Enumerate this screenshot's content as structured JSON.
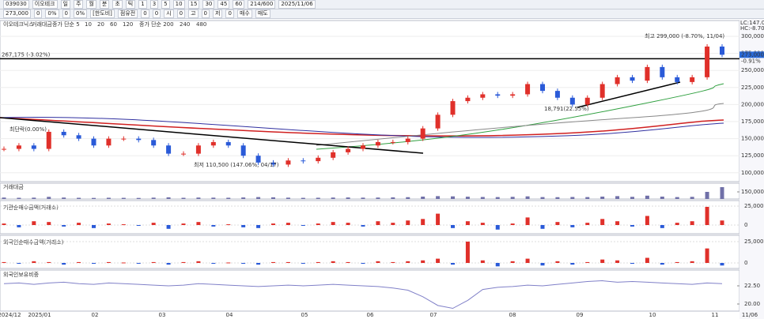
{
  "toolbar": {
    "row1": [
      "039030",
      "이오테크",
      "일",
      "주",
      "월",
      "분",
      "초",
      "틱",
      "1",
      "3",
      "5",
      "10",
      "15",
      "30",
      "45",
      "60",
      "214/600",
      "2025/11/06"
    ],
    "row2": [
      "273,000",
      "0",
      "0%",
      "0",
      "0%",
      "[한도비]",
      "점유전",
      "0",
      "0",
      "시",
      "0",
      "고",
      "0",
      "저",
      "0",
      "매수",
      "매도"
    ]
  },
  "legend": [
    "이오테크닉스",
    "거래대금",
    "종가 단순 5",
    "10",
    "20",
    "60",
    "120",
    "종가 단순 200",
    "240",
    "480"
  ],
  "annotations": {
    "high": "최고 299,000 (-8.70%, 11/04)",
    "ref_label": "267,175 (-3.02%)",
    "low": "최저 110,500 (147.06%, 04/17)",
    "mid": "18,791(22.55%)",
    "left": "최단락(0.00%)"
  },
  "ref_line": 267175,
  "right_info": {
    "lc": "LC:147.06",
    "hc": "HC:-8.70",
    "last": "273,000",
    "change": "-0.91%"
  },
  "price": {
    "yticks": [
      {
        "value": 300000,
        "label": "300,000"
      },
      {
        "value": 275000,
        "label": "275,000"
      },
      {
        "value": 250000,
        "label": "250,000"
      },
      {
        "value": 225000,
        "label": "225,000"
      },
      {
        "value": 200000,
        "label": "200,000"
      },
      {
        "value": 175000,
        "label": "175,000"
      },
      {
        "value": 150000,
        "label": "150,000"
      },
      {
        "value": 125000,
        "label": "125,000"
      },
      {
        "value": 100000,
        "label": "100,000"
      }
    ],
    "closes": [
      135000,
      140000,
      135000,
      160000,
      155000,
      150000,
      140000,
      150000,
      150000,
      148000,
      140000,
      128000,
      128000,
      140000,
      145000,
      140000,
      125000,
      115000,
      112000,
      118000,
      117000,
      122000,
      130000,
      135000,
      140000,
      145000,
      145000,
      150000,
      165000,
      185000,
      205000,
      210000,
      215000,
      213000,
      215000,
      230000,
      220000,
      210000,
      200000,
      210000,
      230000,
      240000,
      235000,
      255000,
      240000,
      233000,
      240000,
      285000,
      273000
    ]
  },
  "volume": {
    "title": "거래대금",
    "ytick": {
      "value": 150000,
      "label": "150,000"
    },
    "values": [
      30000,
      25000,
      28000,
      45000,
      30000,
      25000,
      22000,
      26000,
      24000,
      22000,
      28000,
      35000,
      25000,
      30000,
      28000,
      26000,
      32000,
      40000,
      35000,
      28000,
      24000,
      26000,
      30000,
      32000,
      28000,
      30000,
      34000,
      38000,
      50000,
      60000,
      55000,
      48000,
      42000,
      40000,
      45000,
      55000,
      40000,
      38000,
      42000,
      40000,
      50000,
      60000,
      45000,
      70000,
      50000,
      40000,
      45000,
      150000,
      250000
    ]
  },
  "inst": {
    "title": "기관순매수금액(거래소)",
    "yticks": [
      {
        "value": 25000,
        "label": "25,000"
      },
      0
    ],
    "values": [
      2000,
      -3000,
      5000,
      4000,
      -2000,
      3000,
      -4000,
      2000,
      1000,
      -1000,
      3000,
      -5000,
      2000,
      4000,
      -2000,
      1000,
      -3000,
      -4000,
      2000,
      3000,
      -1000,
      2000,
      4000,
      3000,
      -2000,
      5000,
      3000,
      6000,
      8000,
      15000,
      -4000,
      5000,
      3000,
      -6000,
      2000,
      10000,
      -5000,
      4000,
      -3000,
      3000,
      8000,
      5000,
      -2000,
      12000,
      -4000,
      3000,
      5000,
      24000,
      6000
    ]
  },
  "foreign": {
    "title": "외국인순매수금액(거래소)",
    "yticks": [
      {
        "value": 25000,
        "label": "25,000"
      },
      0
    ],
    "values": [
      1000,
      -1000,
      2000,
      1000,
      -2000,
      1000,
      -1000,
      1000,
      500,
      -500,
      1000,
      -2000,
      1000,
      2000,
      -1000,
      500,
      -1000,
      -2000,
      1000,
      1000,
      -500,
      1000,
      2000,
      1000,
      -1000,
      2000,
      1000,
      2000,
      3000,
      5000,
      -2000,
      25000,
      3000,
      -4000,
      2000,
      5000,
      -3000,
      2000,
      -2000,
      1000,
      4000,
      3000,
      -1000,
      6000,
      -2000,
      1000,
      2000,
      17000,
      -3000
    ]
  },
  "holding": {
    "title": "외국인보유비중",
    "yticks": [
      {
        "value": 22.5,
        "label": "22.50"
      },
      {
        "value": 20,
        "label": "20.00"
      }
    ],
    "values": [
      22.8,
      22.9,
      22.7,
      22.9,
      23.0,
      22.8,
      22.7,
      22.9,
      22.8,
      22.7,
      22.6,
      22.5,
      22.6,
      22.8,
      22.7,
      22.6,
      22.5,
      22.4,
      22.5,
      22.6,
      22.5,
      22.6,
      22.7,
      22.6,
      22.5,
      22.4,
      22.2,
      21.9,
      21.0,
      19.8,
      19.4,
      20.5,
      22.0,
      22.3,
      22.4,
      22.6,
      22.5,
      22.7,
      22.9,
      23.1,
      23.2,
      23.0,
      23.1,
      23.0,
      22.9,
      22.8,
      22.7,
      22.9,
      22.8
    ]
  },
  "dates": [
    "2024/12",
    "2025/01",
    "02",
    "03",
    "04",
    "05",
    "06",
    "07",
    "08",
    "09",
    "10",
    "11",
    "11/06"
  ]
}
